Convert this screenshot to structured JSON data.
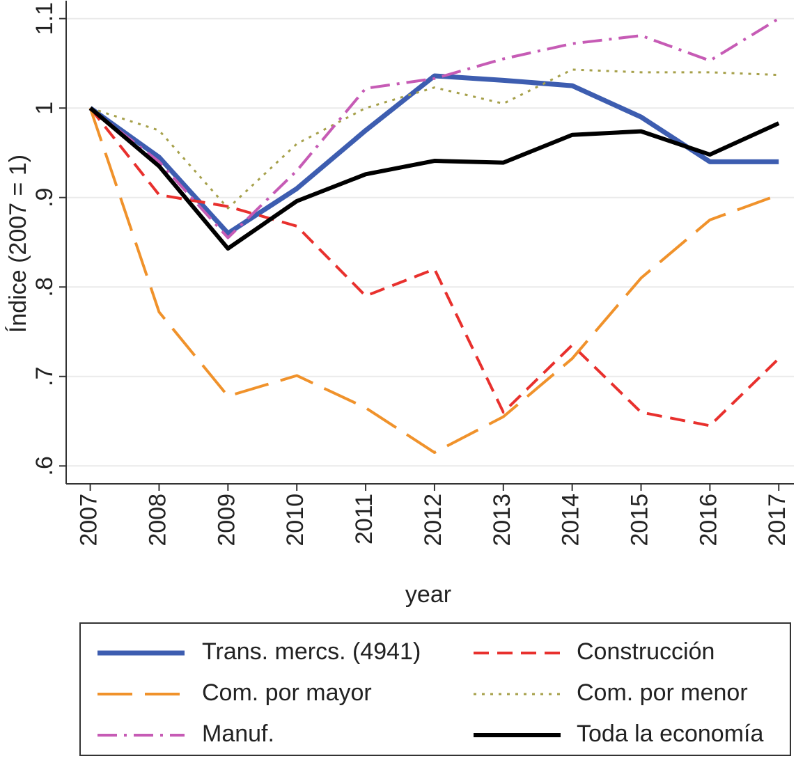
{
  "chart_data": {
    "type": "line",
    "x_label": "year",
    "y_label": "Índice (2007 = 1)",
    "x": [
      2007,
      2008,
      2009,
      2010,
      2011,
      2012,
      2013,
      2014,
      2015,
      2016,
      2017
    ],
    "xlim": [
      2006.65,
      2017.22
    ],
    "xticks": [
      2007,
      2008,
      2009,
      2010,
      2011,
      2012,
      2013,
      2014,
      2015,
      2016,
      2017
    ],
    "ylim": [
      0.58,
      1.12
    ],
    "yticks": [
      {
        "value": 0.6,
        "label": ".6"
      },
      {
        "value": 0.7,
        "label": ".7"
      },
      {
        "value": 0.8,
        "label": ".8"
      },
      {
        "value": 0.9,
        "label": ".9"
      },
      1,
      {
        "value": 1.1,
        "label": "1.1"
      }
    ],
    "grid": true,
    "series": [
      {
        "name": "Trans. mercs. (4941)",
        "color": "#3d5db0",
        "style": "solid",
        "width": 7,
        "values": [
          1.0,
          0.945,
          0.86,
          0.91,
          0.975,
          1.036,
          1.031,
          1.025,
          0.99,
          0.94,
          0.94
        ]
      },
      {
        "name": "Construcción",
        "color": "#e8302d",
        "style": "dash",
        "width": 4,
        "values": [
          1.0,
          0.903,
          0.89,
          0.868,
          0.79,
          0.82,
          0.66,
          0.735,
          0.66,
          0.645,
          0.72
        ]
      },
      {
        "name": "Com. por mayor",
        "color": "#f0922b",
        "style": "longdash",
        "width": 4,
        "values": [
          1.0,
          0.772,
          0.678,
          0.701,
          0.665,
          0.615,
          0.655,
          0.72,
          0.81,
          0.875,
          0.903
        ]
      },
      {
        "name": "Com. por menor",
        "color": "#a6a04a",
        "style": "dot",
        "width": 3,
        "values": [
          1.0,
          0.975,
          0.888,
          0.96,
          1.0,
          1.023,
          1.005,
          1.043,
          1.04,
          1.04,
          1.037
        ]
      },
      {
        "name": "Manuf.",
        "color": "#c65bb5",
        "style": "dashdot",
        "width": 4,
        "values": [
          1.0,
          0.94,
          0.855,
          0.93,
          1.022,
          1.033,
          1.055,
          1.072,
          1.081,
          1.053,
          1.1
        ]
      },
      {
        "name": "Toda la economía",
        "color": "#000000",
        "style": "solid",
        "width": 6,
        "values": [
          1.0,
          0.935,
          0.843,
          0.896,
          0.926,
          0.941,
          0.939,
          0.97,
          0.974,
          0.948,
          0.983
        ]
      }
    ]
  }
}
